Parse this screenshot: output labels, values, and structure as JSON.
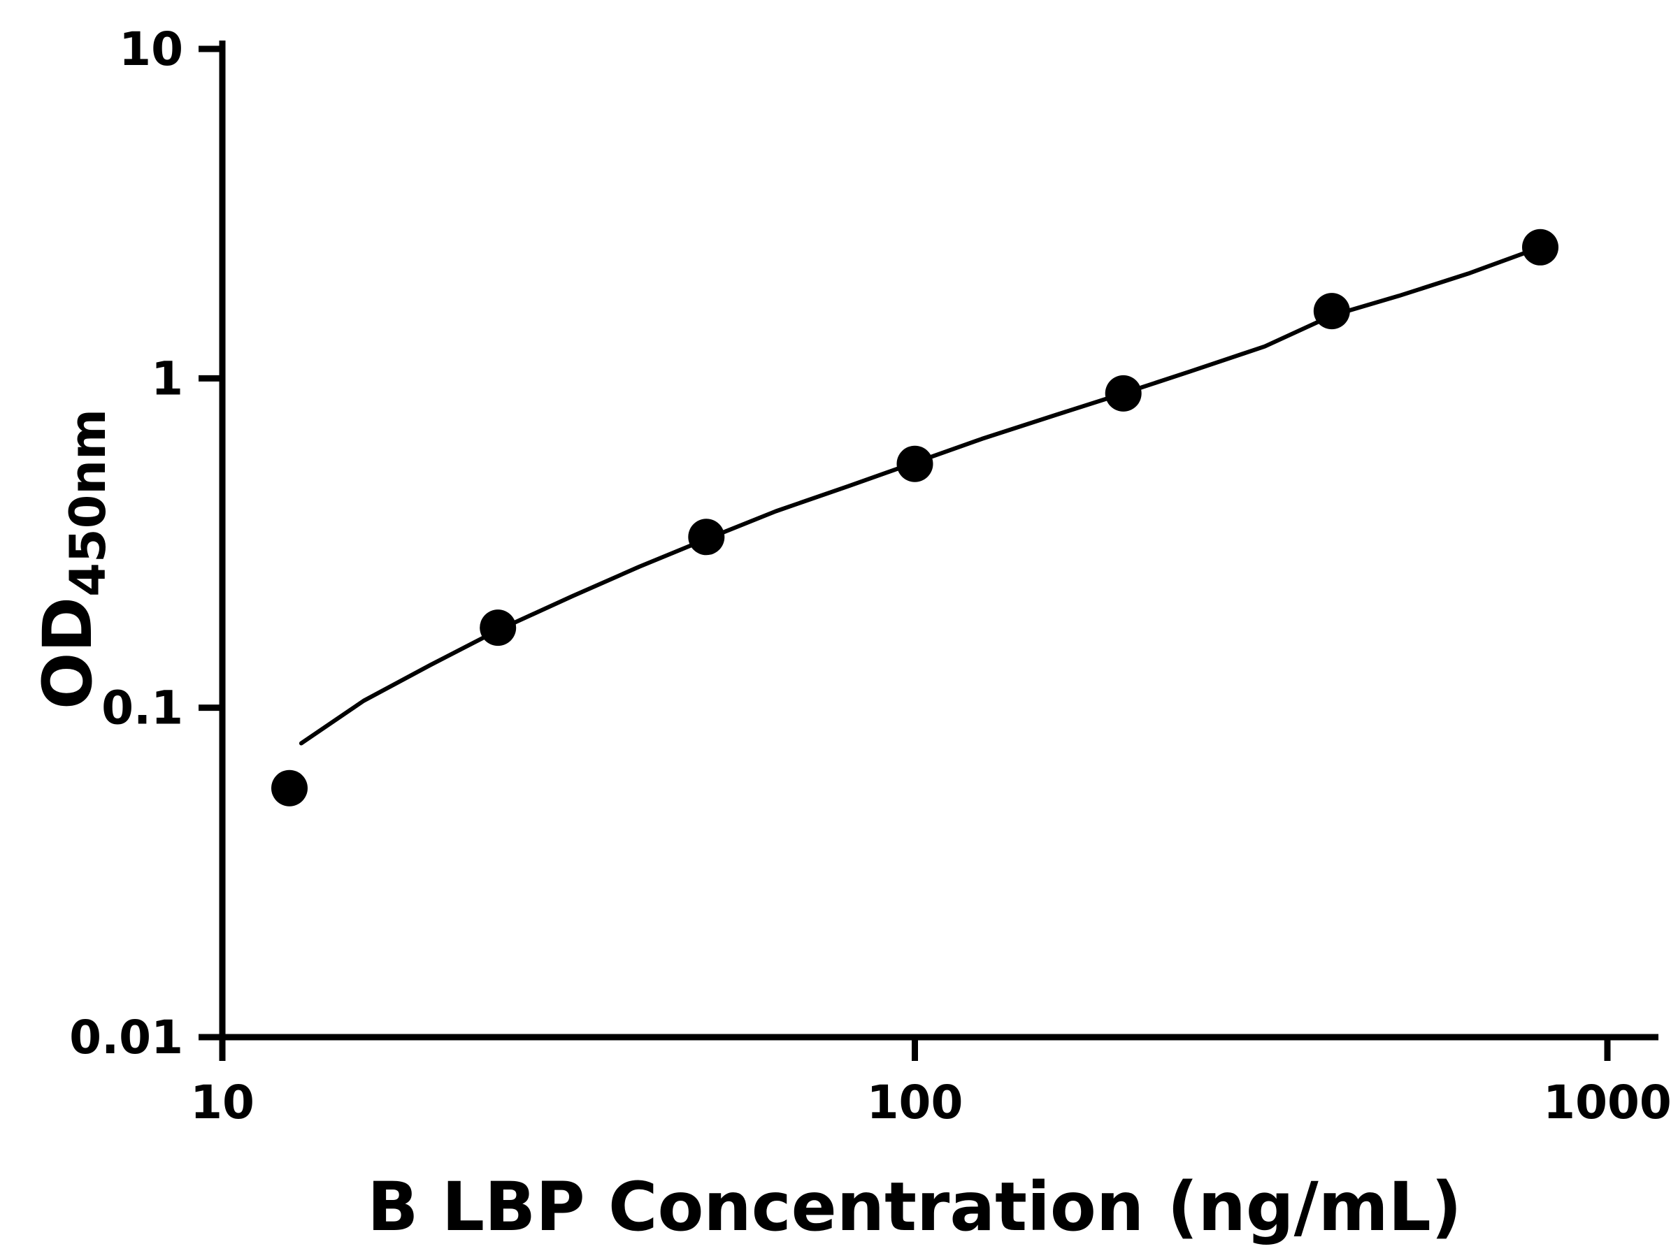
{
  "chart_data": {
    "type": "scatter",
    "title": "",
    "xlabel": "B LBP Concentration (ng/mL)",
    "ylabel": "OD450nm",
    "ylabel_main": "OD",
    "ylabel_sub": "450nm",
    "x_scale": "log10",
    "y_scale": "log10",
    "xlim": [
      10,
      1000
    ],
    "ylim": [
      0.01,
      10
    ],
    "x_tick_values": [
      10,
      100,
      1000
    ],
    "x_tick_labels": [
      "10",
      "100",
      "1000"
    ],
    "y_tick_values": [
      0.01,
      0.1,
      1,
      10
    ],
    "y_tick_labels": [
      "0.01",
      "0.1",
      "1",
      "10"
    ],
    "grid": false,
    "legend": null,
    "axis_color": "#000000",
    "line_color": "#000000",
    "marker": {
      "shape": "circle",
      "color": "#000000",
      "radius_px": 26
    },
    "points": {
      "x": [
        12.5,
        25,
        50,
        100,
        200,
        400,
        800
      ],
      "y": [
        0.057,
        0.175,
        0.33,
        0.55,
        0.9,
        1.6,
        2.5
      ]
    },
    "fit_curve": [
      [
        13,
        0.078
      ],
      [
        16,
        0.105
      ],
      [
        20,
        0.135
      ],
      [
        25,
        0.172
      ],
      [
        32,
        0.218
      ],
      [
        40,
        0.268
      ],
      [
        50,
        0.325
      ],
      [
        63,
        0.395
      ],
      [
        80,
        0.47
      ],
      [
        100,
        0.555
      ],
      [
        125,
        0.655
      ],
      [
        160,
        0.775
      ],
      [
        200,
        0.9
      ],
      [
        250,
        1.05
      ],
      [
        320,
        1.25
      ],
      [
        400,
        1.55
      ],
      [
        500,
        1.78
      ],
      [
        630,
        2.08
      ],
      [
        800,
        2.5
      ]
    ]
  }
}
